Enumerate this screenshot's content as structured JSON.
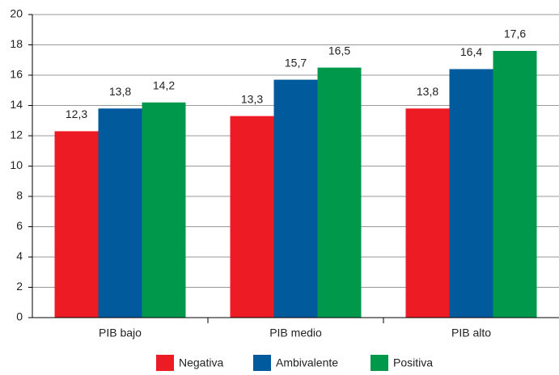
{
  "chart_data": {
    "type": "bar",
    "categories": [
      "PIB bajo",
      "PIB medio",
      "PIB alto"
    ],
    "series": [
      {
        "name": "Negativa",
        "color": "#ed1c24",
        "values": [
          12.3,
          13.3,
          13.8
        ],
        "value_labels": [
          "12,3",
          "13,3",
          "13,8"
        ]
      },
      {
        "name": "Ambivalente",
        "color": "#005a9c",
        "values": [
          13.8,
          15.7,
          16.4
        ],
        "value_labels": [
          "13,8",
          "15,7",
          "16,4"
        ]
      },
      {
        "name": "Positiva",
        "color": "#00994c",
        "values": [
          14.2,
          16.5,
          17.6
        ],
        "value_labels": [
          "14,2",
          "16,5",
          "17,6"
        ]
      }
    ],
    "ylim": [
      0,
      20
    ],
    "yticks": [
      0,
      2,
      4,
      6,
      8,
      10,
      12,
      14,
      16,
      18,
      20
    ],
    "grid": true,
    "legend": "bottom"
  }
}
